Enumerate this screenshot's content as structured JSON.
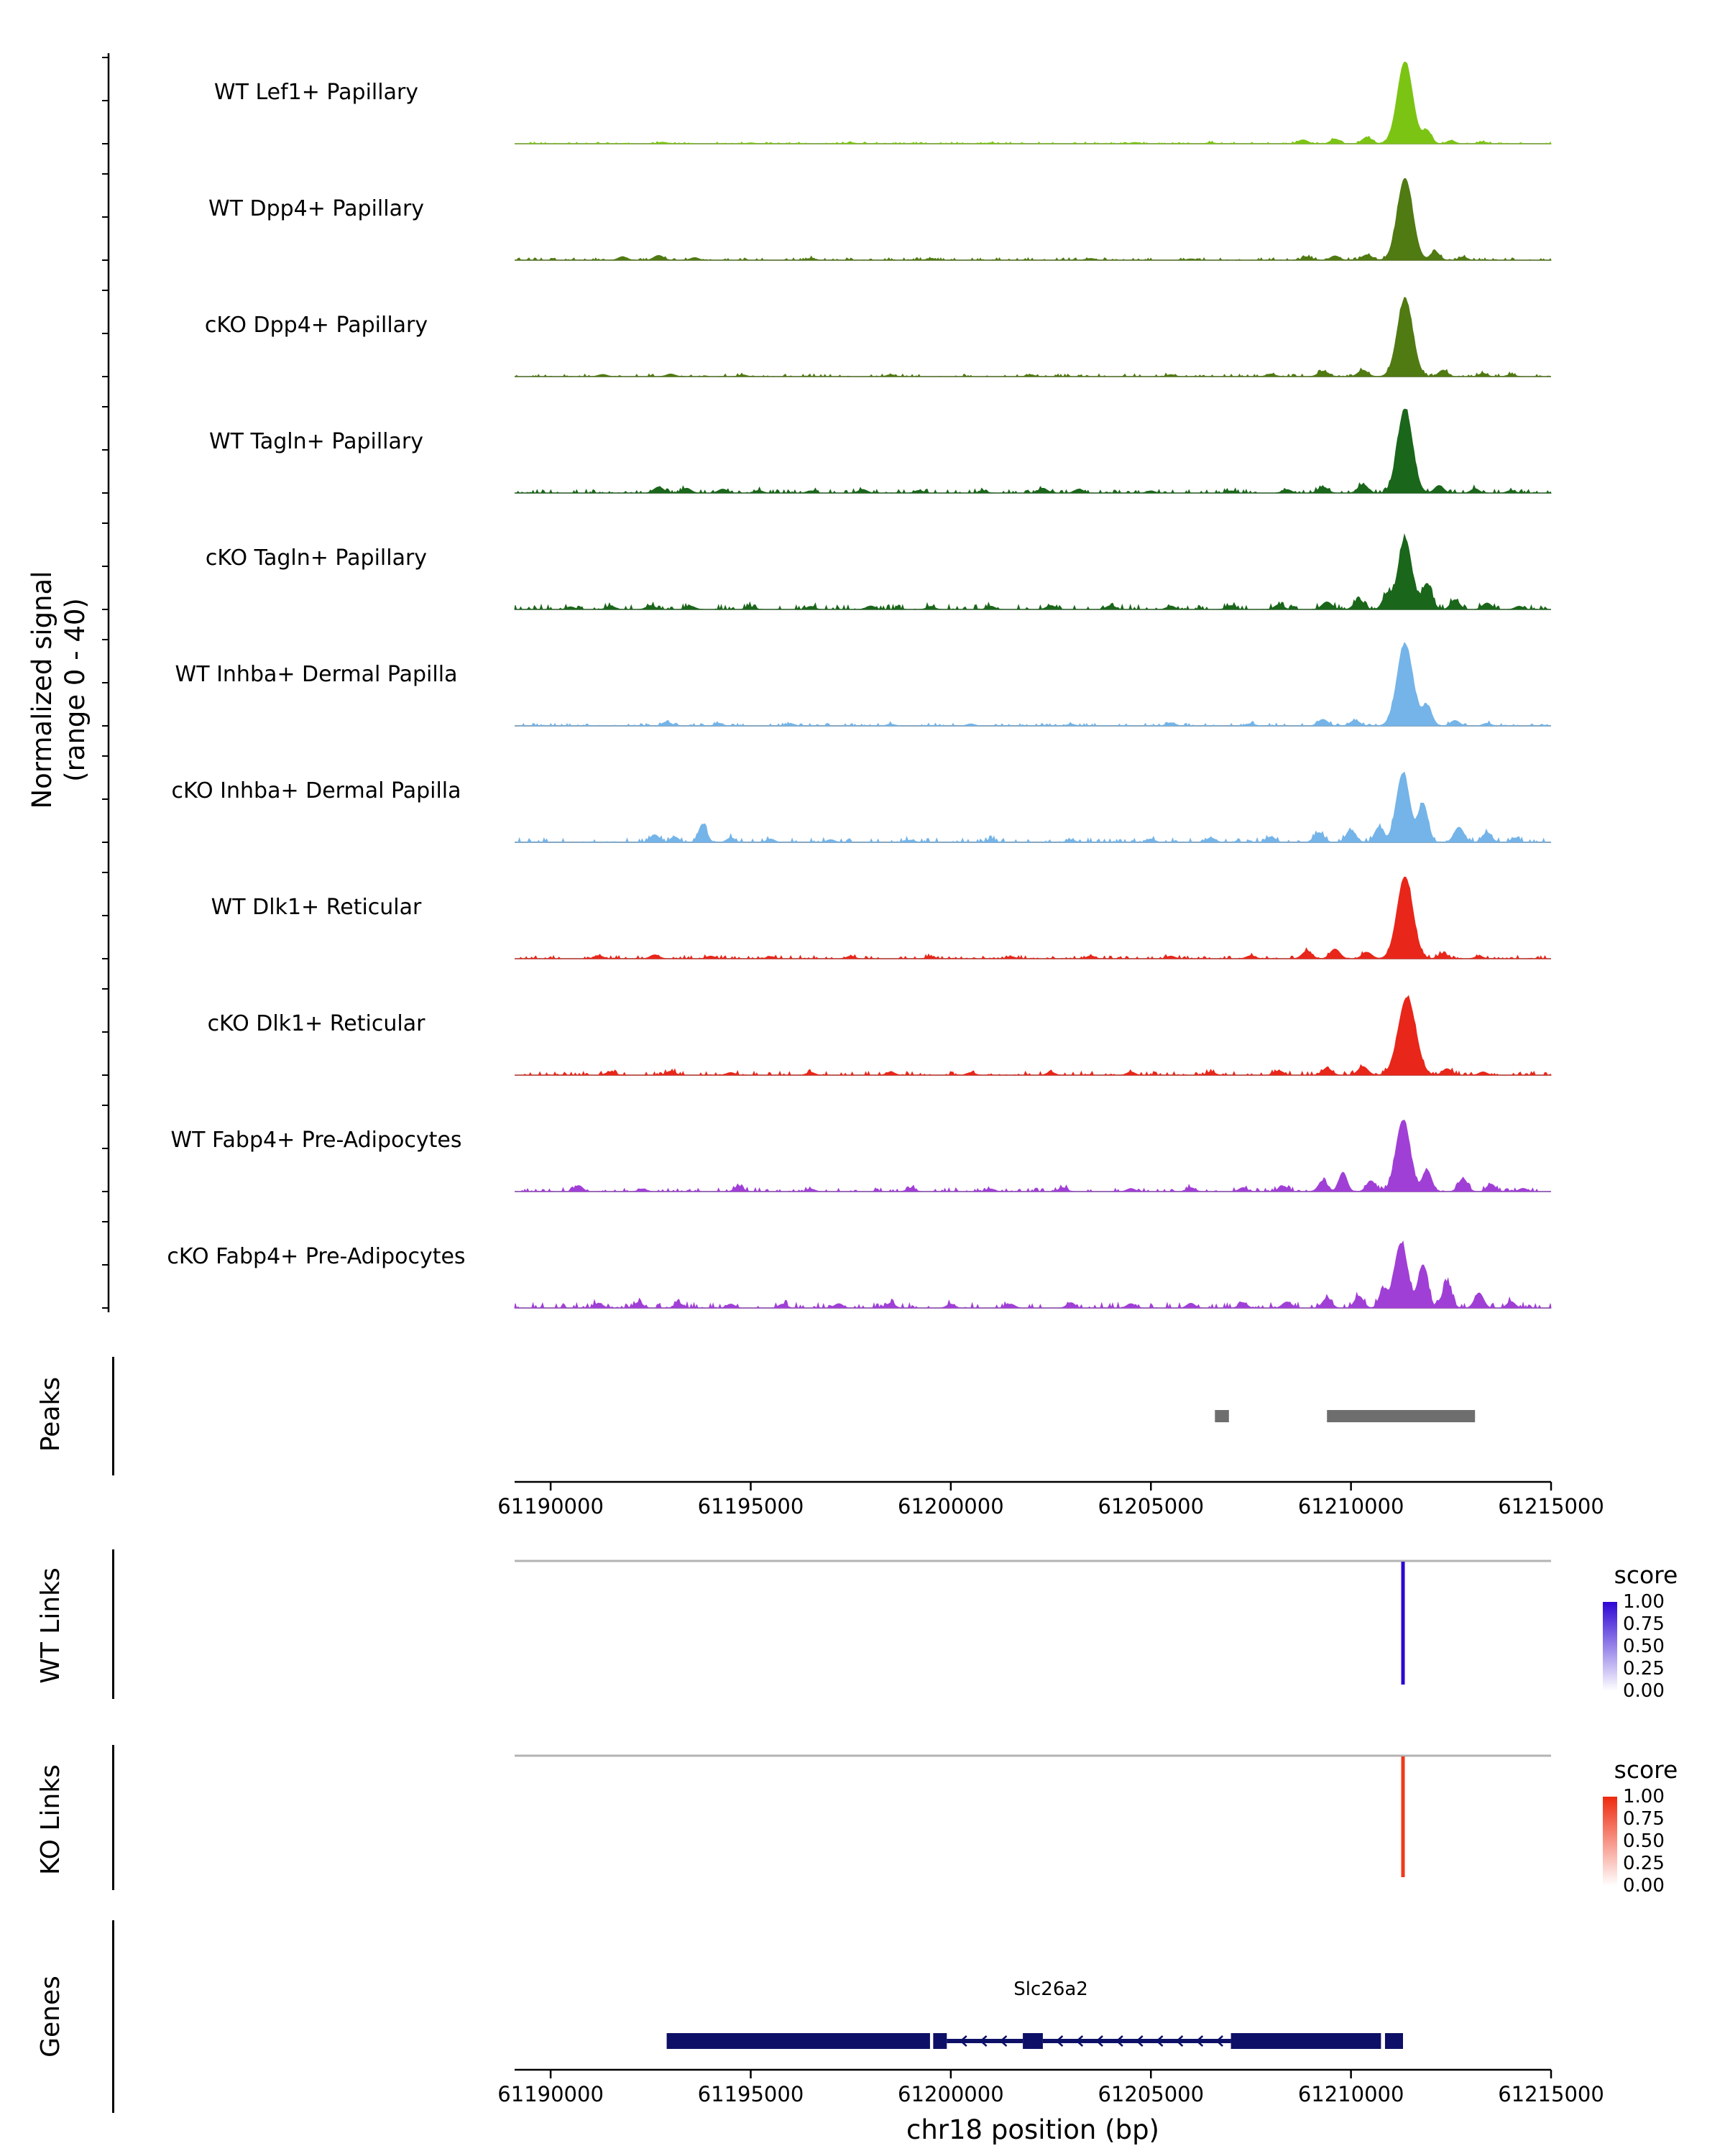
{
  "chart_data": {
    "type": "area",
    "xlabel": "chr18 position (bp)",
    "ylabel_lines": [
      "Normalized signal",
      "(range 0 - 40)"
    ],
    "x_range": [
      61189100,
      61215000
    ],
    "x_ticks": [
      61190000,
      61195000,
      61200000,
      61205000,
      61210000,
      61215000
    ],
    "track_y_range": [
      0,
      40
    ],
    "tracks": [
      {
        "label": "WT Lef1+ Papillary",
        "color": "#7cc414",
        "noise": 0.3,
        "seed": 101,
        "peaks": [
          [
            61192800,
            0.7,
            110
          ],
          [
            61195000,
            0.4,
            100
          ],
          [
            61197500,
            0.5,
            100
          ],
          [
            61201000,
            0.4,
            100
          ],
          [
            61204600,
            0.6,
            100
          ],
          [
            61206500,
            0.5,
            100
          ],
          [
            61208800,
            1.8,
            120
          ],
          [
            61209600,
            2.2,
            110
          ],
          [
            61210400,
            3.0,
            120
          ],
          [
            61211350,
            38,
            190
          ],
          [
            61211900,
            6,
            110
          ],
          [
            61212500,
            1.5,
            100
          ],
          [
            61213300,
            0.8,
            100
          ]
        ]
      },
      {
        "label": "WT Dpp4+ Papillary",
        "color": "#507a12",
        "noise": 0.45,
        "seed": 202,
        "peaks": [
          [
            61191800,
            1.6,
            110
          ],
          [
            61192700,
            2.2,
            120
          ],
          [
            61193600,
            1.2,
            100
          ],
          [
            61196500,
            0.8,
            100
          ],
          [
            61199500,
            0.7,
            100
          ],
          [
            61203500,
            0.8,
            100
          ],
          [
            61206000,
            0.6,
            100
          ],
          [
            61208900,
            1.5,
            110
          ],
          [
            61209600,
            2.0,
            110
          ],
          [
            61210400,
            2.5,
            120
          ],
          [
            61211350,
            38,
            190
          ],
          [
            61212100,
            4,
            110
          ],
          [
            61212800,
            1.5,
            100
          ]
        ]
      },
      {
        "label": "cKO Dpp4+ Papillary",
        "color": "#507a12",
        "noise": 0.5,
        "seed": 303,
        "peaks": [
          [
            61191300,
            1.0,
            110
          ],
          [
            61193000,
            1.2,
            110
          ],
          [
            61194800,
            0.8,
            100
          ],
          [
            61198500,
            0.9,
            100
          ],
          [
            61202000,
            0.8,
            100
          ],
          [
            61205500,
            0.9,
            100
          ],
          [
            61208000,
            1.2,
            110
          ],
          [
            61209300,
            2.5,
            120
          ],
          [
            61210300,
            3.0,
            120
          ],
          [
            61211350,
            36,
            190
          ],
          [
            61212300,
            3,
            110
          ],
          [
            61213300,
            1.5,
            100
          ],
          [
            61214000,
            1.0,
            100
          ]
        ]
      },
      {
        "label": "WT Tagln+ Papillary",
        "color": "#1a661a",
        "noise": 0.7,
        "seed": 404,
        "peaks": [
          [
            61192700,
            2.8,
            120
          ],
          [
            61193400,
            2.2,
            110
          ],
          [
            61194300,
            1.8,
            110
          ],
          [
            61195200,
            1.2,
            100
          ],
          [
            61196500,
            1.0,
            100
          ],
          [
            61197800,
            1.6,
            110
          ],
          [
            61199200,
            1.2,
            100
          ],
          [
            61200800,
            1.0,
            100
          ],
          [
            61202300,
            2.2,
            110
          ],
          [
            61203200,
            1.8,
            110
          ],
          [
            61205000,
            1.0,
            100
          ],
          [
            61207000,
            1.0,
            100
          ],
          [
            61208400,
            1.6,
            110
          ],
          [
            61209300,
            2.8,
            120
          ],
          [
            61210300,
            4,
            120
          ],
          [
            61211350,
            39,
            185
          ],
          [
            61212200,
            3.5,
            110
          ],
          [
            61213100,
            2.0,
            100
          ],
          [
            61214000,
            1.2,
            100
          ]
        ]
      },
      {
        "label": "cKO Tagln+ Papillary",
        "color": "#1a661a",
        "noise": 0.9,
        "seed": 505,
        "peaks": [
          [
            61190500,
            1.2,
            100
          ],
          [
            61191500,
            1.5,
            110
          ],
          [
            61192500,
            1.8,
            110
          ],
          [
            61193500,
            1.5,
            110
          ],
          [
            61195000,
            1.2,
            100
          ],
          [
            61196500,
            1.4,
            100
          ],
          [
            61198000,
            1.6,
            110
          ],
          [
            61199500,
            1.4,
            100
          ],
          [
            61201000,
            1.5,
            100
          ],
          [
            61202500,
            1.8,
            110
          ],
          [
            61204000,
            1.8,
            110
          ],
          [
            61205500,
            1.6,
            100
          ],
          [
            61207000,
            1.8,
            110
          ],
          [
            61208200,
            2.2,
            110
          ],
          [
            61209400,
            3.5,
            120
          ],
          [
            61210200,
            4.5,
            120
          ],
          [
            61210900,
            7,
            110
          ],
          [
            61211350,
            33,
            165
          ],
          [
            61211900,
            12,
            120
          ],
          [
            61212600,
            4.5,
            110
          ],
          [
            61213400,
            3,
            110
          ],
          [
            61214200,
            1.5,
            100
          ]
        ]
      },
      {
        "label": "WT Inhba+ Dermal Papilla",
        "color": "#74b4e8",
        "noise": 0.5,
        "seed": 606,
        "peaks": [
          [
            61192900,
            1.8,
            110
          ],
          [
            61194200,
            1.2,
            100
          ],
          [
            61196000,
            1.0,
            100
          ],
          [
            61198500,
            0.8,
            100
          ],
          [
            61200500,
            0.9,
            100
          ],
          [
            61203000,
            0.8,
            100
          ],
          [
            61205500,
            1.4,
            110
          ],
          [
            61207500,
            1.0,
            100
          ],
          [
            61209300,
            3.0,
            120
          ],
          [
            61210100,
            2.5,
            120
          ],
          [
            61211350,
            38,
            195
          ],
          [
            61211900,
            9,
            120
          ],
          [
            61212600,
            2.5,
            110
          ],
          [
            61213400,
            1.2,
            100
          ]
        ]
      },
      {
        "label": "cKO Inhba+ Dermal Papilla",
        "color": "#74b4e8",
        "noise": 0.8,
        "seed": 707,
        "peaks": [
          [
            61192600,
            3.5,
            110
          ],
          [
            61193100,
            2.5,
            100
          ],
          [
            61193800,
            8.5,
            100
          ],
          [
            61194500,
            2.0,
            100
          ],
          [
            61195500,
            1.5,
            100
          ],
          [
            61197000,
            1.2,
            100
          ],
          [
            61199000,
            1.0,
            100
          ],
          [
            61201000,
            1.3,
            100
          ],
          [
            61203000,
            1.2,
            100
          ],
          [
            61205000,
            1.5,
            100
          ],
          [
            61206500,
            2.0,
            110
          ],
          [
            61208000,
            2.5,
            110
          ],
          [
            61209200,
            4.5,
            120
          ],
          [
            61210000,
            5.5,
            120
          ],
          [
            61210700,
            7,
            110
          ],
          [
            61211300,
            32,
            165
          ],
          [
            61211800,
            18,
            120
          ],
          [
            61212700,
            7,
            120
          ],
          [
            61213400,
            4.5,
            110
          ],
          [
            61214100,
            2,
            100
          ]
        ]
      },
      {
        "label": "WT Dlk1+ Reticular",
        "color": "#e8261a",
        "noise": 0.6,
        "seed": 808,
        "peaks": [
          [
            61191200,
            1.4,
            110
          ],
          [
            61192600,
            1.8,
            110
          ],
          [
            61194000,
            1.2,
            100
          ],
          [
            61195500,
            1.0,
            100
          ],
          [
            61197500,
            1.2,
            100
          ],
          [
            61199500,
            1.0,
            100
          ],
          [
            61201500,
            1.0,
            100
          ],
          [
            61203500,
            1.3,
            100
          ],
          [
            61205500,
            1.2,
            100
          ],
          [
            61207500,
            1.4,
            110
          ],
          [
            61208900,
            3.5,
            120
          ],
          [
            61209600,
            4.5,
            120
          ],
          [
            61210400,
            3.0,
            120
          ],
          [
            61211350,
            38,
            195
          ],
          [
            61212300,
            2.5,
            110
          ],
          [
            61213200,
            1.2,
            100
          ]
        ]
      },
      {
        "label": "cKO Dlk1+ Reticular",
        "color": "#e8261a",
        "noise": 0.7,
        "seed": 909,
        "peaks": [
          [
            61191500,
            1.6,
            110
          ],
          [
            61193000,
            1.8,
            110
          ],
          [
            61194500,
            1.2,
            100
          ],
          [
            61196500,
            1.3,
            100
          ],
          [
            61198500,
            1.5,
            100
          ],
          [
            61200500,
            1.2,
            100
          ],
          [
            61202500,
            1.4,
            100
          ],
          [
            61204500,
            1.5,
            100
          ],
          [
            61206500,
            1.5,
            100
          ],
          [
            61208200,
            2.0,
            110
          ],
          [
            61209400,
            3.2,
            120
          ],
          [
            61210300,
            4.0,
            120
          ],
          [
            61211400,
            36,
            215
          ],
          [
            61212400,
            3.0,
            110
          ],
          [
            61213300,
            1.5,
            100
          ]
        ]
      },
      {
        "label": "WT Fabp4+ Pre-Adipocytes",
        "color": "#a03fd6",
        "noise": 0.7,
        "seed": 1010,
        "peaks": [
          [
            61190700,
            2.8,
            100
          ],
          [
            61192300,
            1.2,
            100
          ],
          [
            61194700,
            2.6,
            100
          ],
          [
            61196500,
            1.2,
            100
          ],
          [
            61199000,
            1.6,
            100
          ],
          [
            61201000,
            1.2,
            100
          ],
          [
            61202800,
            1.8,
            100
          ],
          [
            61204500,
            1.4,
            100
          ],
          [
            61206000,
            1.8,
            100
          ],
          [
            61207300,
            1.8,
            100
          ],
          [
            61208300,
            2.5,
            110
          ],
          [
            61209300,
            5,
            110
          ],
          [
            61209800,
            9,
            100
          ],
          [
            61210500,
            5,
            110
          ],
          [
            61211300,
            33,
            175
          ],
          [
            61211900,
            10,
            110
          ],
          [
            61212800,
            6,
            110
          ],
          [
            61213500,
            3.5,
            100
          ],
          [
            61214300,
            1.5,
            100
          ]
        ]
      },
      {
        "label": "cKO Fabp4+ Pre-Adipocytes",
        "color": "#a03fd6",
        "noise": 1.0,
        "seed": 1111,
        "peaks": [
          [
            61191200,
            2.2,
            100
          ],
          [
            61192200,
            2.6,
            100
          ],
          [
            61193200,
            2.2,
            100
          ],
          [
            61194500,
            1.8,
            100
          ],
          [
            61195800,
            1.8,
            100
          ],
          [
            61197200,
            2.0,
            100
          ],
          [
            61198500,
            2.2,
            100
          ],
          [
            61200000,
            1.8,
            100
          ],
          [
            61201500,
            1.8,
            100
          ],
          [
            61203000,
            2.5,
            100
          ],
          [
            61204500,
            2.0,
            100
          ],
          [
            61206000,
            2.2,
            100
          ],
          [
            61207300,
            2.5,
            100
          ],
          [
            61208400,
            2.8,
            110
          ],
          [
            61209400,
            4.5,
            110
          ],
          [
            61210200,
            5.5,
            110
          ],
          [
            61210800,
            8,
            100
          ],
          [
            61211250,
            30,
            165
          ],
          [
            61211800,
            20,
            120
          ],
          [
            61212400,
            12,
            110
          ],
          [
            61213200,
            7,
            110
          ],
          [
            61214000,
            3,
            100
          ]
        ]
      }
    ],
    "peaks_track": {
      "label": "Peaks",
      "color": "#6e6e6e",
      "regions": [
        [
          61206600,
          61206950
        ],
        [
          61209400,
          61213100
        ]
      ]
    },
    "links": [
      {
        "label": "WT Links",
        "color": "#2d06d3",
        "link": {
          "position": 61211300,
          "score": 1.0
        },
        "legend": {
          "title": "score",
          "ticks": [
            "1.00",
            "0.75",
            "0.50",
            "0.25",
            "0.00"
          ],
          "high_color": "#2d06d3",
          "low_color": "#ffffff"
        }
      },
      {
        "label": "KO Links",
        "color": "#ee3a1c",
        "link": {
          "position": 61211300,
          "score": 1.0
        },
        "legend": {
          "title": "score",
          "ticks": [
            "1.00",
            "0.75",
            "0.50",
            "0.25",
            "0.00"
          ],
          "high_color": "#ee2a0e",
          "low_color": "#ffffff"
        }
      }
    ],
    "genes_track": {
      "label": "Genes",
      "gene": {
        "name": "Slc26a2",
        "strand": "-",
        "color": "#0d1066",
        "label_position": 61202500,
        "thick_blocks": [
          [
            61192900,
            61199480
          ],
          [
            61199560,
            61199900
          ],
          [
            61201800,
            61202300
          ],
          [
            61207000,
            61210750
          ],
          [
            61210850,
            61211300
          ]
        ],
        "thin_spans": [
          [
            61199900,
            61201800
          ],
          [
            61202300,
            61207000
          ]
        ]
      }
    }
  }
}
